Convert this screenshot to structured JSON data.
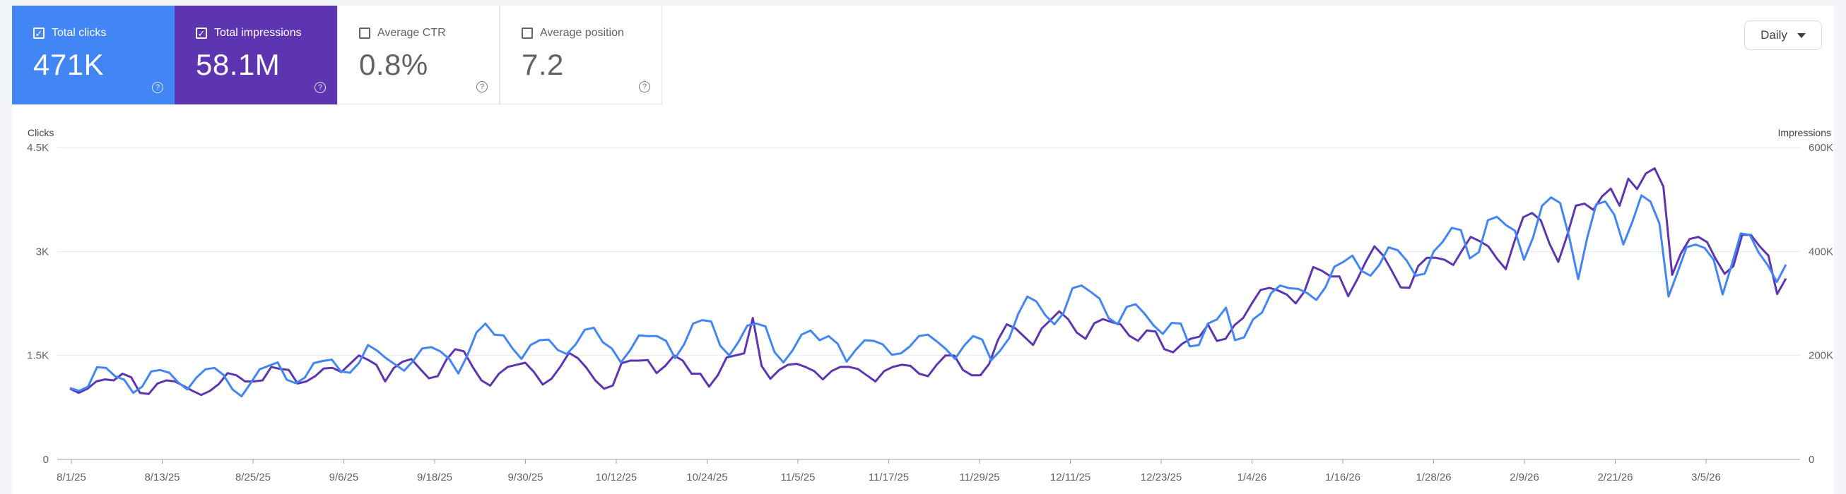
{
  "metrics": [
    {
      "label": "Total clicks",
      "value": "471K",
      "selected": true,
      "color": "#4285f4"
    },
    {
      "label": "Total impressions",
      "value": "58.1M",
      "selected": true,
      "color": "#5e35b1"
    },
    {
      "label": "Average CTR",
      "value": "0.8%",
      "selected": false,
      "color": "#ffffff"
    },
    {
      "label": "Average position",
      "value": "7.2",
      "selected": false,
      "color": "#ffffff"
    }
  ],
  "period_selector": {
    "label": "Daily"
  },
  "chart_data": {
    "type": "line",
    "left_axis": {
      "title": "Clicks",
      "ticks": [
        "0",
        "1.5K",
        "3K",
        "4.5K"
      ],
      "range": [
        0,
        4500
      ]
    },
    "right_axis": {
      "title": "Impressions",
      "ticks": [
        "0",
        "200K",
        "400K",
        "600K"
      ],
      "range": [
        0,
        600000
      ]
    },
    "x_tick_labels": [
      "8/1/25",
      "8/13/25",
      "8/25/25",
      "9/6/25",
      "9/18/25",
      "9/30/25",
      "10/12/25",
      "10/24/25",
      "11/5/25",
      "11/17/25",
      "11/29/25",
      "12/11/25",
      "12/23/25",
      "1/4/26",
      "1/16/26",
      "1/28/26",
      "2/9/26",
      "2/21/26",
      "3/5/26"
    ],
    "grid": true,
    "series": [
      {
        "name": "Total clicks",
        "axis": "left",
        "color": "#4285f4",
        "values": [
          1030,
          990,
          1050,
          1330,
          1320,
          1200,
          1150,
          960,
          1050,
          1270,
          1290,
          1250,
          1110,
          1010,
          1180,
          1300,
          1320,
          1220,
          1010,
          910,
          1100,
          1300,
          1350,
          1400,
          1150,
          1100,
          1180,
          1390,
          1420,
          1440,
          1270,
          1250,
          1390,
          1650,
          1570,
          1460,
          1370,
          1280,
          1420,
          1600,
          1620,
          1560,
          1450,
          1240,
          1500,
          1830,
          1960,
          1800,
          1790,
          1600,
          1450,
          1650,
          1720,
          1730,
          1580,
          1520,
          1660,
          1870,
          1900,
          1690,
          1600,
          1400,
          1570,
          1790,
          1780,
          1780,
          1710,
          1460,
          1660,
          1960,
          2010,
          1990,
          1640,
          1500,
          1690,
          1930,
          1960,
          1920,
          1550,
          1400,
          1570,
          1800,
          1860,
          1720,
          1780,
          1670,
          1410,
          1580,
          1720,
          1710,
          1660,
          1510,
          1530,
          1630,
          1780,
          1800,
          1700,
          1590,
          1450,
          1640,
          1780,
          1730,
          1430,
          1570,
          1750,
          2100,
          2350,
          2280,
          2080,
          1950,
          2110,
          2470,
          2510,
          2420,
          2320,
          2040,
          1950,
          2200,
          2240,
          2100,
          1930,
          1810,
          1970,
          1960,
          1630,
          1650,
          1960,
          2020,
          2190,
          1720,
          1760,
          2020,
          2120,
          2400,
          2510,
          2470,
          2460,
          2400,
          2300,
          2480,
          2780,
          2850,
          2940,
          2720,
          2650,
          2810,
          3060,
          3020,
          2870,
          2650,
          2680,
          3000,
          3140,
          3340,
          3310,
          2900,
          2990,
          3450,
          3500,
          3380,
          3300,
          2880,
          3200,
          3660,
          3780,
          3700,
          3210,
          2600,
          3200,
          3680,
          3720,
          3530,
          3100,
          3430,
          3810,
          3720,
          3400,
          2350,
          2700,
          3060,
          3100,
          3050,
          2880,
          2380,
          2810,
          3260,
          3240,
          2980,
          2800,
          2560,
          2810
        ]
      },
      {
        "name": "Total impressions",
        "axis": "right",
        "color": "#5e35b1",
        "values": [
          136000,
          128000,
          136000,
          150000,
          154000,
          152000,
          165000,
          158000,
          128000,
          126000,
          146000,
          152000,
          150000,
          141000,
          132000,
          124000,
          132000,
          145000,
          166000,
          162000,
          150000,
          150000,
          152000,
          178000,
          174000,
          172000,
          146000,
          150000,
          160000,
          175000,
          176000,
          168000,
          184000,
          200000,
          192000,
          182000,
          150000,
          176000,
          188000,
          193000,
          174000,
          156000,
          160000,
          192000,
          212000,
          208000,
          178000,
          152000,
          142000,
          165000,
          178000,
          182000,
          186000,
          168000,
          144000,
          155000,
          178000,
          205000,
          195000,
          176000,
          152000,
          136000,
          142000,
          185000,
          190000,
          190000,
          191000,
          166000,
          180000,
          200000,
          190000,
          165000,
          165000,
          140000,
          162000,
          196000,
          200000,
          204000,
          272000,
          180000,
          155000,
          172000,
          182000,
          184000,
          178000,
          170000,
          154000,
          170000,
          178000,
          178000,
          174000,
          162000,
          150000,
          170000,
          178000,
          182000,
          180000,
          165000,
          160000,
          182000,
          200000,
          200000,
          172000,
          162000,
          162000,
          184000,
          230000,
          260000,
          252000,
          236000,
          220000,
          252000,
          268000,
          285000,
          270000,
          244000,
          232000,
          262000,
          270000,
          264000,
          260000,
          238000,
          228000,
          248000,
          246000,
          212000,
          206000,
          222000,
          232000,
          236000,
          259000,
          228000,
          232000,
          258000,
          272000,
          300000,
          326000,
          330000,
          325000,
          317000,
          300000,
          323000,
          370000,
          363000,
          352000,
          352000,
          314000,
          345000,
          380000,
          410000,
          392000,
          362000,
          331000,
          330000,
          372000,
          388000,
          388000,
          384000,
          374000,
          402000,
          428000,
          420000,
          410000,
          386000,
          366000,
          420000,
          466000,
          474000,
          460000,
          415000,
          380000,
          430000,
          488000,
          492000,
          480000,
          506000,
          521000,
          488000,
          540000,
          520000,
          550000,
          560000,
          525000,
          355000,
          396000,
          424000,
          428000,
          418000,
          385000,
          357000,
          372000,
          432000,
          432000,
          410000,
          392000,
          318000,
          348000
        ]
      }
    ]
  }
}
